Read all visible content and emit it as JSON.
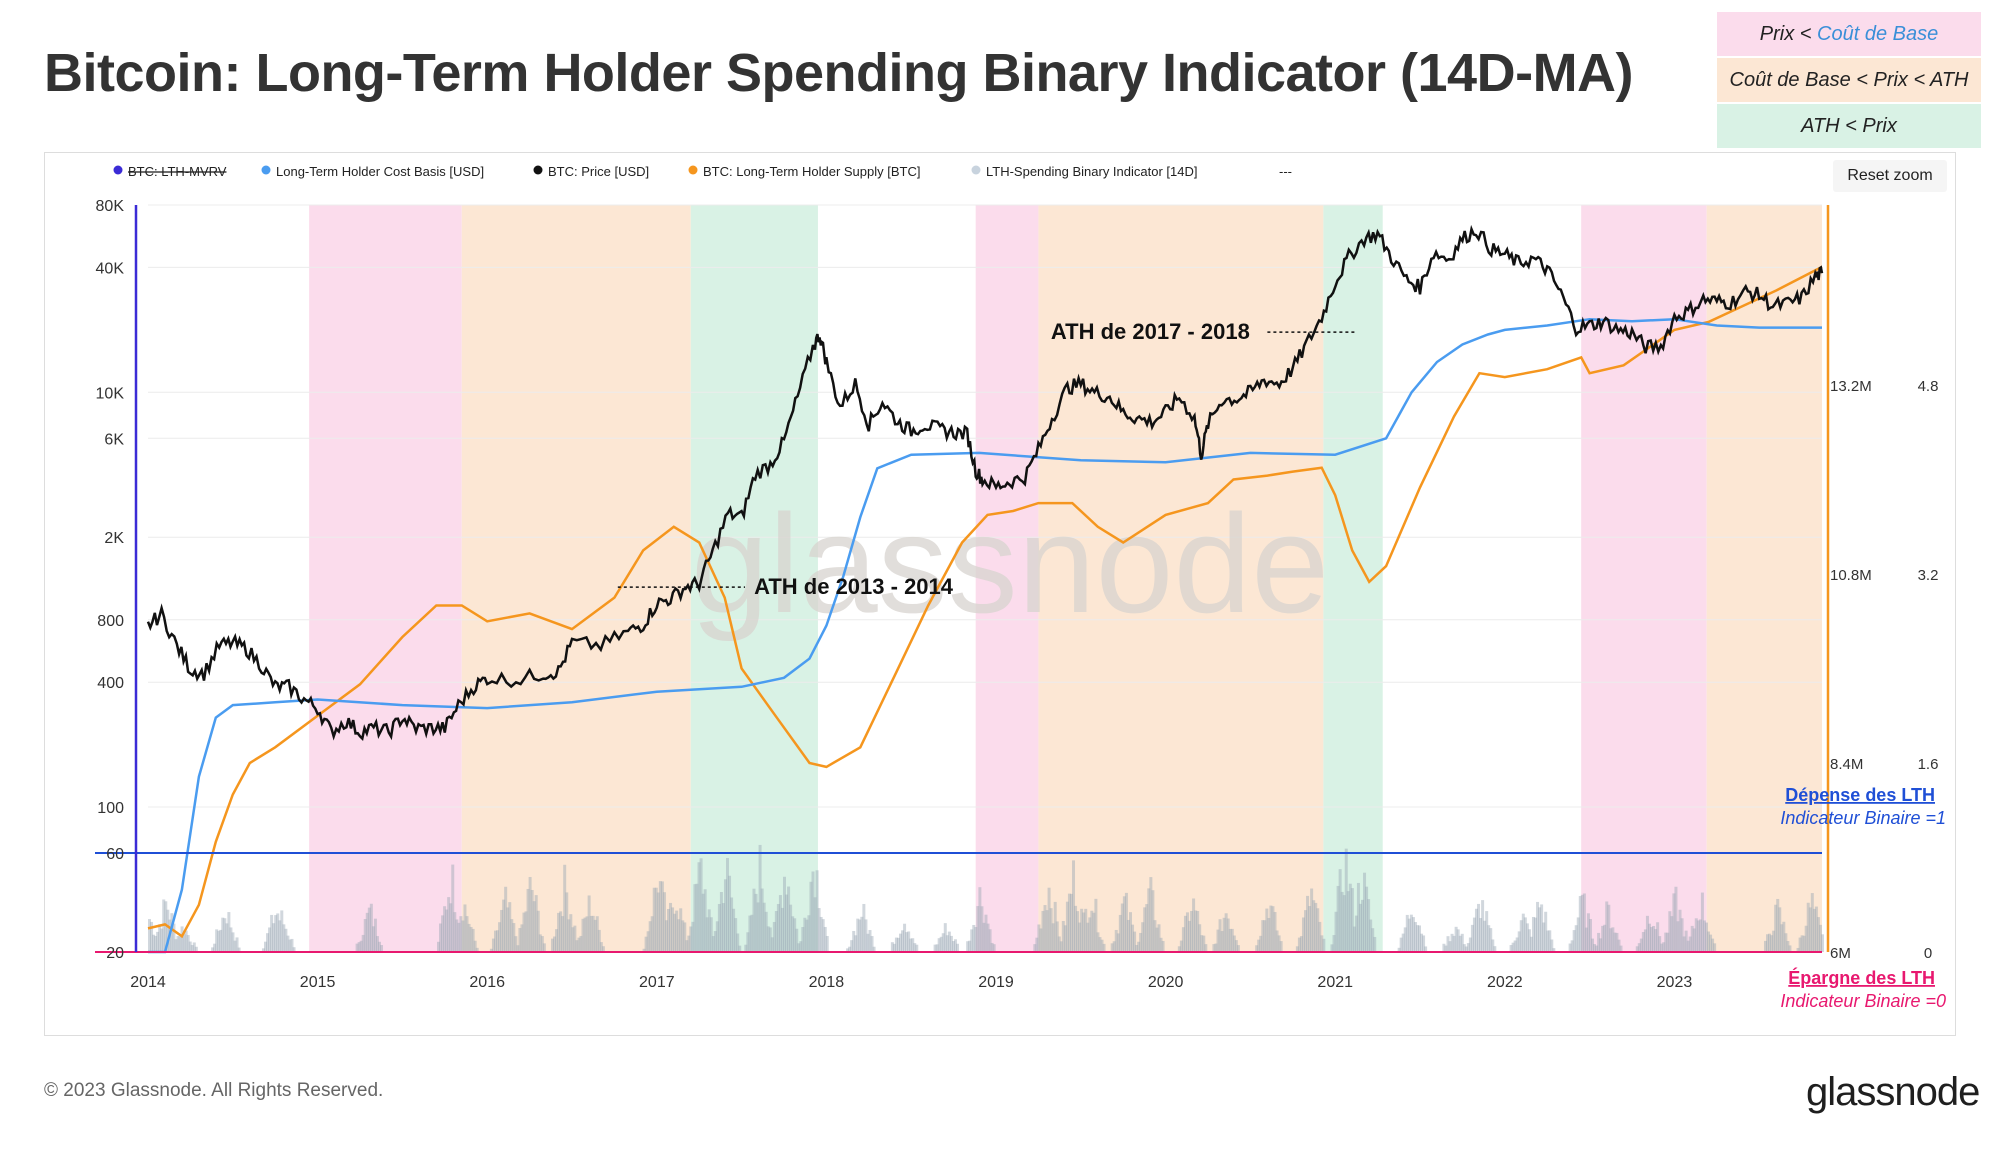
{
  "page": {
    "title": "Bitcoin: Long-Term Holder Spending Binary Indicator (14D-MA)",
    "copyright": "© 2023 Glassnode. All Rights Reserved.",
    "brand": "glassnode",
    "reset_zoom": "Reset zoom"
  },
  "legend_boxes": [
    {
      "prefix": "Prix < ",
      "highlight": "Coût de Base",
      "suffix": "",
      "color": "#fbdcec"
    },
    {
      "prefix": "Coût de Base < Prix < ATH",
      "highlight": "",
      "suffix": "",
      "color": "#fce7d4"
    },
    {
      "prefix": "ATH < Prix",
      "highlight": "",
      "suffix": "",
      "color": "#d9f2e5"
    }
  ],
  "chart_data": {
    "type": "line",
    "watermark": "glassnode",
    "legend": [
      {
        "name": "BTC: LTH-MVRV",
        "color": "#3b2bd6",
        "strikethrough": true
      },
      {
        "name": "Long-Term Holder Cost Basis [USD]",
        "color": "#4a9cf0"
      },
      {
        "name": "BTC: Price [USD]",
        "color": "#111111"
      },
      {
        "name": "BTC: Long-Term Holder Supply [BTC]",
        "color": "#f5961e"
      },
      {
        "name": "LTH-Spending Binary Indicator [14D]",
        "color": "#c8d3de"
      },
      {
        "name": "---",
        "color": "#666666"
      }
    ],
    "x_ticks": [
      "2014",
      "2015",
      "2016",
      "2017",
      "2018",
      "2019",
      "2020",
      "2021",
      "2022",
      "2023"
    ],
    "y_left_ticks": [
      "80K",
      "40K",
      "10K",
      "6K",
      "2K",
      "800",
      "400",
      "100",
      "60",
      "20"
    ],
    "y_left_ticks_values": [
      80000,
      40000,
      10000,
      6000,
      2000,
      800,
      400,
      100,
      60,
      20
    ],
    "y_right_supply_ticks": [
      "13.2M",
      "10.8M",
      "8.4M",
      "6M"
    ],
    "y_right_supply_values": [
      13.2,
      10.8,
      8.4,
      6.0
    ],
    "y_right_mvrv_ticks": [
      "4.8",
      "3.2",
      "1.6",
      "0"
    ],
    "y_right_mvrv_values": [
      4.8,
      3.2,
      1.6,
      0
    ],
    "regions": [
      {
        "start": 2014.95,
        "end": 2015.85,
        "type": "pink"
      },
      {
        "start": 2015.85,
        "end": 2017.2,
        "type": "peach"
      },
      {
        "start": 2017.2,
        "end": 2017.95,
        "type": "green"
      },
      {
        "start": 2018.88,
        "end": 2019.25,
        "type": "pink"
      },
      {
        "start": 2019.25,
        "end": 2020.93,
        "type": "peach"
      },
      {
        "start": 2020.93,
        "end": 2021.28,
        "type": "green"
      },
      {
        "start": 2022.45,
        "end": 2023.19,
        "type": "pink"
      },
      {
        "start": 2023.19,
        "end": 2023.87,
        "type": "peach"
      }
    ],
    "region_colors": {
      "pink": "#fbdcec",
      "peach": "#fce7d4",
      "green": "#d9f2e5"
    },
    "annotations": [
      {
        "text": "ATH de 2013 - 2014",
        "x": 2017.55,
        "y": 1150,
        "line_from": 2016.77,
        "line_to": 2017.52
      },
      {
        "text": "ATH de 2017 - 2018",
        "x": 2019.3,
        "y": 19500,
        "line_from": 2020.6,
        "line_to": 2021.12
      }
    ],
    "threshold_lines": [
      {
        "label": "Dépense des LTH",
        "sublabel": "Indicateur Binaire =1",
        "y": 60,
        "color": "#1f4fd6"
      },
      {
        "label": "Épargne des LTH",
        "sublabel": "Indicateur Binaire =0",
        "y": 20,
        "color": "#e8186f"
      }
    ],
    "series": [
      {
        "name": "BTC: Price [USD]",
        "axis": "left",
        "x": [
          2014.0,
          2014.08,
          2014.17,
          2014.25,
          2014.33,
          2014.42,
          2014.5,
          2014.58,
          2014.67,
          2014.75,
          2014.83,
          2014.92,
          2015.0,
          2015.08,
          2015.17,
          2015.25,
          2015.33,
          2015.42,
          2015.5,
          2015.58,
          2015.67,
          2015.75,
          2015.83,
          2015.92,
          2016.0,
          2016.17,
          2016.33,
          2016.42,
          2016.5,
          2016.67,
          2016.83,
          2016.92,
          2017.0,
          2017.08,
          2017.17,
          2017.25,
          2017.33,
          2017.42,
          2017.5,
          2017.58,
          2017.67,
          2017.75,
          2017.83,
          2017.92,
          2017.96,
          2018.0,
          2018.08,
          2018.17,
          2018.25,
          2018.33,
          2018.42,
          2018.5,
          2018.58,
          2018.67,
          2018.75,
          2018.83,
          2018.88,
          2018.92,
          2019.0,
          2019.08,
          2019.17,
          2019.25,
          2019.33,
          2019.42,
          2019.5,
          2019.58,
          2019.67,
          2019.75,
          2019.83,
          2019.92,
          2020.0,
          2020.08,
          2020.17,
          2020.21,
          2020.25,
          2020.33,
          2020.42,
          2020.5,
          2020.58,
          2020.67,
          2020.75,
          2020.83,
          2020.92,
          2021.0,
          2021.08,
          2021.17,
          2021.25,
          2021.33,
          2021.42,
          2021.5,
          2021.58,
          2021.67,
          2021.75,
          2021.83,
          2021.92,
          2022.0,
          2022.08,
          2022.17,
          2022.25,
          2022.33,
          2022.42,
          2022.5,
          2022.58,
          2022.67,
          2022.75,
          2022.83,
          2022.92,
          2023.0,
          2023.08,
          2023.17,
          2023.25,
          2023.33,
          2023.42,
          2023.5,
          2023.58,
          2023.67,
          2023.75,
          2023.83,
          2023.87
        ],
        "values": [
          750,
          850,
          600,
          460,
          440,
          600,
          620,
          580,
          480,
          380,
          380,
          330,
          300,
          230,
          260,
          230,
          240,
          230,
          270,
          240,
          240,
          240,
          310,
          380,
          420,
          410,
          440,
          450,
          620,
          600,
          700,
          760,
          960,
          1010,
          1150,
          1200,
          1700,
          2600,
          2500,
          4000,
          4500,
          5800,
          9500,
          16500,
          19000,
          14000,
          8500,
          11000,
          7000,
          9000,
          7200,
          6500,
          7000,
          6600,
          6400,
          6300,
          4200,
          3800,
          3500,
          3700,
          3900,
          5300,
          7500,
          10500,
          11000,
          10000,
          9500,
          8000,
          7500,
          7200,
          8000,
          9500,
          7500,
          5000,
          7000,
          9200,
          9300,
          10000,
          11500,
          11000,
          13000,
          17000,
          23000,
          34000,
          45000,
          55000,
          58000,
          45000,
          35000,
          32000,
          47000,
          44000,
          55000,
          61000,
          49000,
          46000,
          42000,
          44000,
          39000,
          30000,
          20500,
          21000,
          22000,
          20000,
          19300,
          16500,
          16600,
          23000,
          24500,
          28000,
          27500,
          27000,
          30500,
          29500,
          26000,
          26800,
          28500,
          36000,
          37500
        ]
      },
      {
        "name": "Long-Term Holder Cost Basis [USD]",
        "axis": "left",
        "x": [
          2014.0,
          2014.1,
          2014.2,
          2014.3,
          2014.4,
          2014.5,
          2014.75,
          2015.0,
          2015.5,
          2016.0,
          2016.5,
          2017.0,
          2017.5,
          2017.75,
          2017.9,
          2018.0,
          2018.1,
          2018.2,
          2018.3,
          2018.5,
          2018.9,
          2019.5,
          2020.0,
          2020.5,
          2021.0,
          2021.3,
          2021.45,
          2021.6,
          2021.75,
          2021.9,
          2022.0,
          2022.25,
          2022.5,
          2022.75,
          2023.0,
          2023.25,
          2023.5,
          2023.87
        ],
        "values": [
          20,
          20,
          40,
          140,
          270,
          310,
          320,
          330,
          310,
          300,
          320,
          360,
          380,
          420,
          520,
          750,
          1300,
          2500,
          4300,
          5000,
          5100,
          4700,
          4600,
          5100,
          5000,
          6000,
          10000,
          14000,
          17000,
          19000,
          20000,
          21000,
          22500,
          22000,
          22500,
          21000,
          20500,
          20500
        ]
      }
    ],
    "supply_series": {
      "name": "BTC: Long-Term Holder Supply [BTC]",
      "axis": "right",
      "x": [
        2014.0,
        2014.1,
        2014.2,
        2014.3,
        2014.4,
        2014.5,
        2014.6,
        2014.75,
        2015.0,
        2015.25,
        2015.5,
        2015.7,
        2015.85,
        2016.0,
        2016.25,
        2016.5,
        2016.75,
        2016.92,
        2017.1,
        2017.25,
        2017.4,
        2017.5,
        2017.7,
        2017.9,
        2018.0,
        2018.2,
        2018.4,
        2018.6,
        2018.8,
        2018.95,
        2019.1,
        2019.25,
        2019.45,
        2019.6,
        2019.75,
        2020.0,
        2020.25,
        2020.4,
        2020.6,
        2020.75,
        2020.92,
        2021.0,
        2021.1,
        2021.2,
        2021.3,
        2021.5,
        2021.7,
        2021.85,
        2022.0,
        2022.25,
        2022.45,
        2022.5,
        2022.7,
        2022.9,
        2023.0,
        2023.2,
        2023.4,
        2023.6,
        2023.87
      ],
      "values": [
        6.3,
        6.35,
        6.2,
        6.6,
        7.4,
        8.0,
        8.4,
        8.6,
        9.0,
        9.4,
        10.0,
        10.4,
        10.4,
        10.2,
        10.3,
        10.1,
        10.5,
        11.1,
        11.4,
        11.2,
        10.5,
        9.6,
        9.0,
        8.4,
        8.35,
        8.6,
        9.5,
        10.4,
        11.2,
        11.55,
        11.6,
        11.7,
        11.7,
        11.4,
        11.2,
        11.55,
        11.7,
        12.0,
        12.05,
        12.1,
        12.15,
        11.8,
        11.1,
        10.7,
        10.9,
        11.9,
        12.8,
        13.35,
        13.3,
        13.4,
        13.55,
        13.35,
        13.45,
        13.75,
        13.9,
        14.0,
        14.2,
        14.4,
        14.7
      ]
    },
    "binary_indicator": {
      "name": "LTH-Spending Binary Indicator [14D]",
      "peaks": [
        [
          2014.0,
          4
        ],
        [
          2014.1,
          6
        ],
        [
          2014.2,
          3
        ],
        [
          2014.45,
          5
        ],
        [
          2014.75,
          5
        ],
        [
          2014.78,
          4
        ],
        [
          2015.3,
          5
        ],
        [
          2015.78,
          9
        ],
        [
          2015.85,
          6
        ],
        [
          2016.1,
          6
        ],
        [
          2016.25,
          8
        ],
        [
          2016.45,
          8
        ],
        [
          2016.6,
          6
        ],
        [
          2017.0,
          9
        ],
        [
          2017.1,
          7
        ],
        [
          2017.25,
          10
        ],
        [
          2017.4,
          10
        ],
        [
          2017.6,
          10
        ],
        [
          2017.75,
          10
        ],
        [
          2017.92,
          11
        ],
        [
          2018.2,
          5
        ],
        [
          2018.45,
          4
        ],
        [
          2018.7,
          3
        ],
        [
          2018.9,
          7
        ],
        [
          2019.3,
          8
        ],
        [
          2019.45,
          9
        ],
        [
          2019.55,
          7
        ],
        [
          2019.75,
          6
        ],
        [
          2019.9,
          7
        ],
        [
          2020.15,
          6
        ],
        [
          2020.35,
          5
        ],
        [
          2020.6,
          6
        ],
        [
          2020.85,
          7
        ],
        [
          2021.05,
          11
        ],
        [
          2021.15,
          9
        ],
        [
          2021.45,
          6
        ],
        [
          2021.7,
          3
        ],
        [
          2021.85,
          6
        ],
        [
          2022.1,
          4
        ],
        [
          2022.2,
          6
        ],
        [
          2022.45,
          6
        ],
        [
          2022.6,
          5
        ],
        [
          2022.85,
          5
        ],
        [
          2023.0,
          6
        ],
        [
          2023.15,
          6
        ],
        [
          2023.6,
          5
        ],
        [
          2023.8,
          6
        ]
      ]
    }
  }
}
